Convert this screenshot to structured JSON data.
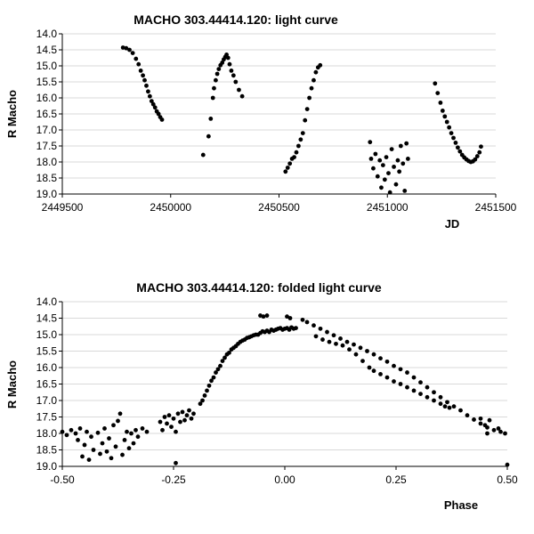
{
  "chart_data": [
    {
      "type": "scatter",
      "title": "MACHO 303.44414.120: light curve",
      "xlabel": "JD",
      "ylabel": "R Macho",
      "xlim": [
        2449500,
        2451500
      ],
      "ylim": [
        14.0,
        19.0
      ],
      "y_inverted": true,
      "xticks": [
        2449500,
        2450000,
        2450500,
        2451000,
        2451500
      ],
      "xtick_labels": [
        "2449500",
        "2450000",
        "2450500",
        "2451000",
        "2451500"
      ],
      "yticks": [
        14.0,
        14.5,
        15.0,
        15.5,
        16.0,
        16.5,
        17.0,
        17.5,
        18.0,
        18.5,
        19.0
      ],
      "ytick_labels": [
        "14.0",
        "14.5",
        "15.0",
        "15.5",
        "16.0",
        "16.5",
        "17.0",
        "17.5",
        "18.0",
        "18.5",
        "19.0"
      ],
      "grid": "horizontal",
      "points": [
        [
          2449780,
          14.43
        ],
        [
          2449795,
          14.45
        ],
        [
          2449810,
          14.5
        ],
        [
          2449825,
          14.6
        ],
        [
          2449840,
          14.78
        ],
        [
          2449852,
          14.95
        ],
        [
          2449862,
          15.15
        ],
        [
          2449872,
          15.3
        ],
        [
          2449880,
          15.45
        ],
        [
          2449888,
          15.62
        ],
        [
          2449896,
          15.8
        ],
        [
          2449904,
          15.95
        ],
        [
          2449912,
          16.1
        ],
        [
          2449920,
          16.2
        ],
        [
          2449928,
          16.3
        ],
        [
          2449936,
          16.42
        ],
        [
          2449944,
          16.5
        ],
        [
          2449952,
          16.6
        ],
        [
          2449960,
          16.68
        ],
        [
          2450150,
          17.78
        ],
        [
          2450175,
          17.2
        ],
        [
          2450185,
          16.65
        ],
        [
          2450195,
          16.0
        ],
        [
          2450200,
          15.7
        ],
        [
          2450208,
          15.45
        ],
        [
          2450215,
          15.25
        ],
        [
          2450222,
          15.1
        ],
        [
          2450230,
          14.98
        ],
        [
          2450238,
          14.9
        ],
        [
          2450245,
          14.8
        ],
        [
          2450252,
          14.72
        ],
        [
          2450258,
          14.65
        ],
        [
          2450265,
          14.75
        ],
        [
          2450272,
          14.95
        ],
        [
          2450280,
          15.15
        ],
        [
          2450290,
          15.3
        ],
        [
          2450300,
          15.5
        ],
        [
          2450315,
          15.75
        ],
        [
          2450330,
          15.95
        ],
        [
          2450530,
          18.3
        ],
        [
          2450540,
          18.18
        ],
        [
          2450550,
          18.05
        ],
        [
          2450560,
          17.9
        ],
        [
          2450570,
          17.85
        ],
        [
          2450580,
          17.7
        ],
        [
          2450590,
          17.5
        ],
        [
          2450600,
          17.3
        ],
        [
          2450610,
          17.1
        ],
        [
          2450620,
          16.7
        ],
        [
          2450630,
          16.35
        ],
        [
          2450640,
          16.0
        ],
        [
          2450650,
          15.7
        ],
        [
          2450660,
          15.45
        ],
        [
          2450670,
          15.2
        ],
        [
          2450680,
          15.05
        ],
        [
          2450690,
          14.98
        ],
        [
          2450920,
          17.38
        ],
        [
          2450925,
          17.9
        ],
        [
          2450935,
          18.2
        ],
        [
          2450945,
          17.75
        ],
        [
          2450955,
          18.45
        ],
        [
          2450965,
          17.95
        ],
        [
          2450972,
          18.8
        ],
        [
          2450980,
          18.1
        ],
        [
          2450988,
          18.55
        ],
        [
          2450995,
          17.85
        ],
        [
          2451005,
          18.35
        ],
        [
          2451012,
          18.95
        ],
        [
          2451020,
          17.6
        ],
        [
          2451030,
          18.15
        ],
        [
          2451040,
          18.7
        ],
        [
          2451048,
          17.95
        ],
        [
          2451055,
          18.3
        ],
        [
          2451062,
          17.5
        ],
        [
          2451072,
          18.05
        ],
        [
          2451080,
          18.9
        ],
        [
          2451088,
          17.42
        ],
        [
          2451095,
          17.9
        ],
        [
          2451220,
          15.55
        ],
        [
          2451232,
          15.85
        ],
        [
          2451245,
          16.15
        ],
        [
          2451255,
          16.4
        ],
        [
          2451265,
          16.58
        ],
        [
          2451275,
          16.75
        ],
        [
          2451285,
          16.92
        ],
        [
          2451295,
          17.1
        ],
        [
          2451305,
          17.25
        ],
        [
          2451315,
          17.4
        ],
        [
          2451325,
          17.55
        ],
        [
          2451335,
          17.67
        ],
        [
          2451345,
          17.78
        ],
        [
          2451355,
          17.86
        ],
        [
          2451365,
          17.92
        ],
        [
          2451375,
          17.97
        ],
        [
          2451385,
          18.0
        ],
        [
          2451395,
          17.98
        ],
        [
          2451405,
          17.92
        ],
        [
          2451415,
          17.82
        ],
        [
          2451425,
          17.7
        ],
        [
          2451432,
          17.52
        ]
      ]
    },
    {
      "type": "scatter",
      "title": "MACHO 303.44414.120: folded light curve",
      "xlabel": "Phase",
      "ylabel": "R Macho",
      "xlim": [
        -0.5,
        0.5
      ],
      "ylim": [
        14.0,
        19.0
      ],
      "y_inverted": true,
      "xticks": [
        -0.5,
        -0.25,
        0.0,
        0.25,
        0.5
      ],
      "xtick_labels": [
        "-0.50",
        "-0.25",
        "0.00",
        "0.25",
        "0.50"
      ],
      "yticks": [
        14.0,
        14.5,
        15.0,
        15.5,
        16.0,
        16.5,
        17.0,
        17.5,
        18.0,
        18.5,
        19.0
      ],
      "ytick_labels": [
        "14.0",
        "14.5",
        "15.0",
        "15.5",
        "16.0",
        "16.5",
        "17.0",
        "17.5",
        "18.0",
        "18.5",
        "19.0"
      ],
      "grid": "horizontal",
      "points": [
        [
          -0.5,
          17.95
        ],
        [
          -0.49,
          18.05
        ],
        [
          -0.48,
          17.9
        ],
        [
          -0.47,
          18.0
        ],
        [
          -0.465,
          18.2
        ],
        [
          -0.46,
          17.85
        ],
        [
          -0.455,
          18.7
        ],
        [
          -0.45,
          18.35
        ],
        [
          -0.445,
          17.95
        ],
        [
          -0.44,
          18.8
        ],
        [
          -0.435,
          18.1
        ],
        [
          -0.43,
          18.5
        ],
        [
          -0.42,
          17.98
        ],
        [
          -0.415,
          18.62
        ],
        [
          -0.41,
          18.3
        ],
        [
          -0.405,
          17.85
        ],
        [
          -0.4,
          18.55
        ],
        [
          -0.395,
          18.15
        ],
        [
          -0.39,
          18.75
        ],
        [
          -0.385,
          17.75
        ],
        [
          -0.38,
          18.4
        ],
        [
          -0.375,
          17.62
        ],
        [
          -0.37,
          17.4
        ],
        [
          -0.365,
          18.65
        ],
        [
          -0.36,
          18.2
        ],
        [
          -0.355,
          17.95
        ],
        [
          -0.35,
          18.45
        ],
        [
          -0.345,
          18.0
        ],
        [
          -0.34,
          18.3
        ],
        [
          -0.335,
          17.9
        ],
        [
          -0.33,
          18.1
        ],
        [
          -0.32,
          17.85
        ],
        [
          -0.31,
          17.95
        ],
        [
          -0.28,
          17.65
        ],
        [
          -0.275,
          17.9
        ],
        [
          -0.27,
          17.5
        ],
        [
          -0.265,
          17.7
        ],
        [
          -0.26,
          17.45
        ],
        [
          -0.255,
          17.8
        ],
        [
          -0.25,
          17.55
        ],
        [
          -0.245,
          17.95
        ],
        [
          -0.24,
          17.4
        ],
        [
          -0.235,
          17.65
        ],
        [
          -0.23,
          17.35
        ],
        [
          -0.225,
          17.6
        ],
        [
          -0.22,
          17.45
        ],
        [
          -0.215,
          17.3
        ],
        [
          -0.21,
          17.55
        ],
        [
          -0.205,
          17.4
        ],
        [
          -0.245,
          18.9
        ],
        [
          -0.19,
          17.1
        ],
        [
          -0.185,
          17.0
        ],
        [
          -0.18,
          16.85
        ],
        [
          -0.175,
          16.7
        ],
        [
          -0.17,
          16.55
        ],
        [
          -0.165,
          16.4
        ],
        [
          -0.16,
          16.3
        ],
        [
          -0.155,
          16.15
        ],
        [
          -0.15,
          16.05
        ],
        [
          -0.145,
          15.95
        ],
        [
          -0.14,
          15.8
        ],
        [
          -0.135,
          15.7
        ],
        [
          -0.13,
          15.6
        ],
        [
          -0.125,
          15.55
        ],
        [
          -0.12,
          15.45
        ],
        [
          -0.115,
          15.4
        ],
        [
          -0.11,
          15.35
        ],
        [
          -0.105,
          15.28
        ],
        [
          -0.1,
          15.22
        ],
        [
          -0.095,
          15.18
        ],
        [
          -0.09,
          15.15
        ],
        [
          -0.085,
          15.1
        ],
        [
          -0.08,
          15.08
        ],
        [
          -0.075,
          15.05
        ],
        [
          -0.07,
          15.02
        ],
        [
          -0.065,
          15.0
        ],
        [
          -0.06,
          15.0
        ],
        [
          -0.055,
          14.95
        ],
        [
          -0.05,
          14.9
        ],
        [
          -0.045,
          14.92
        ],
        [
          -0.04,
          14.88
        ],
        [
          -0.035,
          14.92
        ],
        [
          -0.03,
          14.85
        ],
        [
          -0.025,
          14.88
        ],
        [
          -0.02,
          14.85
        ],
        [
          -0.015,
          14.82
        ],
        [
          -0.01,
          14.8
        ],
        [
          -0.005,
          14.85
        ],
        [
          0.0,
          14.82
        ],
        [
          0.005,
          14.8
        ],
        [
          0.01,
          14.85
        ],
        [
          0.015,
          14.78
        ],
        [
          0.02,
          14.82
        ],
        [
          0.025,
          14.8
        ],
        [
          -0.055,
          14.42
        ],
        [
          -0.048,
          14.45
        ],
        [
          -0.04,
          14.42
        ],
        [
          0.005,
          14.45
        ],
        [
          0.012,
          14.5
        ],
        [
          0.04,
          14.55
        ],
        [
          0.05,
          14.62
        ],
        [
          0.065,
          14.72
        ],
        [
          0.08,
          14.82
        ],
        [
          0.095,
          14.92
        ],
        [
          0.11,
          15.02
        ],
        [
          0.125,
          15.12
        ],
        [
          0.14,
          15.22
        ],
        [
          0.155,
          15.3
        ],
        [
          0.17,
          15.4
        ],
        [
          0.185,
          15.5
        ],
        [
          0.2,
          15.6
        ],
        [
          0.215,
          15.72
        ],
        [
          0.23,
          15.82
        ],
        [
          0.245,
          15.95
        ],
        [
          0.26,
          16.05
        ],
        [
          0.275,
          16.15
        ],
        [
          0.29,
          16.3
        ],
        [
          0.305,
          16.45
        ],
        [
          0.32,
          16.6
        ],
        [
          0.335,
          16.75
        ],
        [
          0.35,
          16.9
        ],
        [
          0.365,
          17.05
        ],
        [
          0.38,
          17.18
        ],
        [
          0.395,
          17.3
        ],
        [
          0.41,
          17.45
        ],
        [
          0.425,
          17.58
        ],
        [
          0.44,
          17.7
        ],
        [
          0.455,
          17.82
        ],
        [
          0.47,
          17.9
        ],
        [
          0.485,
          17.95
        ],
        [
          0.495,
          18.0
        ],
        [
          0.07,
          15.05
        ],
        [
          0.085,
          15.15
        ],
        [
          0.1,
          15.22
        ],
        [
          0.115,
          15.28
        ],
        [
          0.13,
          15.33
        ],
        [
          0.145,
          15.45
        ],
        [
          0.16,
          15.6
        ],
        [
          0.175,
          15.8
        ],
        [
          0.19,
          16.0
        ],
        [
          0.2,
          16.1
        ],
        [
          0.215,
          16.2
        ],
        [
          0.23,
          16.3
        ],
        [
          0.245,
          16.42
        ],
        [
          0.26,
          16.5
        ],
        [
          0.275,
          16.6
        ],
        [
          0.29,
          16.7
        ],
        [
          0.305,
          16.8
        ],
        [
          0.32,
          16.9
        ],
        [
          0.335,
          17.0
        ],
        [
          0.35,
          17.1
        ],
        [
          0.36,
          17.18
        ],
        [
          0.37,
          17.22
        ],
        [
          0.44,
          17.55
        ],
        [
          0.45,
          17.75
        ],
        [
          0.455,
          18.0
        ],
        [
          0.46,
          17.6
        ],
        [
          0.48,
          17.85
        ],
        [
          0.5,
          18.95
        ]
      ]
    }
  ]
}
